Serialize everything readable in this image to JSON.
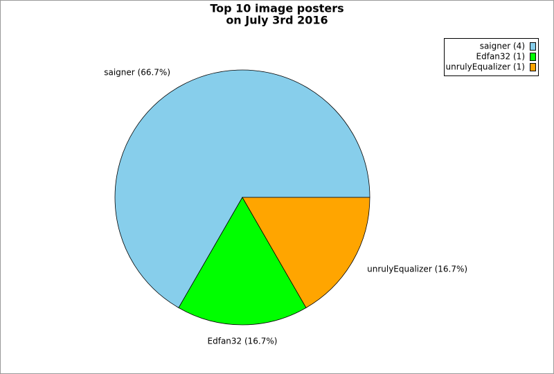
{
  "chart_data": {
    "type": "pie",
    "title": [
      "Top 10 image posters",
      "on July 3rd 2016"
    ],
    "values": [
      4,
      1,
      1
    ],
    "labels": [
      "saigner (66.7%)",
      "Edfan32 (16.7%)",
      "unrulyEqualizer (16.7%)"
    ],
    "legend": [
      "saigner (4)",
      "Edfan32 (1)",
      "unrulyEqualizer (1)"
    ],
    "colors": [
      "#87ceeb",
      "#00ff00",
      "#ffa500"
    ],
    "legend_position": "upper right"
  }
}
